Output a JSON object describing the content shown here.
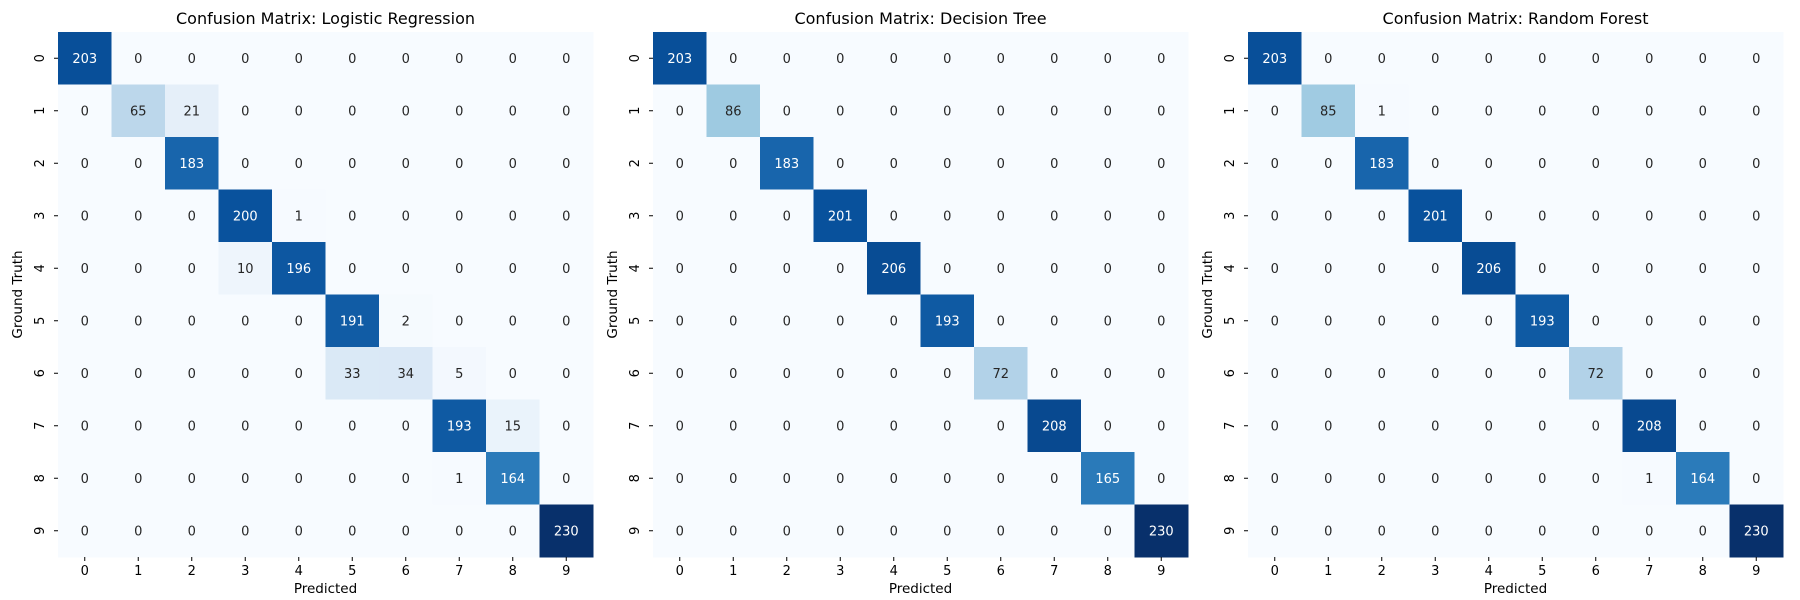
{
  "chart_data": [
    {
      "type": "heatmap",
      "title": "Confusion Matrix: Logistic Regression",
      "xlabel": "Predicted",
      "ylabel": "Ground Truth",
      "x_categories": [
        "0",
        "1",
        "2",
        "3",
        "4",
        "5",
        "6",
        "7",
        "8",
        "9"
      ],
      "y_categories": [
        "0",
        "1",
        "2",
        "3",
        "4",
        "5",
        "6",
        "7",
        "8",
        "9"
      ],
      "colormap": "Blues",
      "vmax": 230,
      "values": [
        [
          203,
          0,
          0,
          0,
          0,
          0,
          0,
          0,
          0,
          0
        ],
        [
          0,
          65,
          21,
          0,
          0,
          0,
          0,
          0,
          0,
          0
        ],
        [
          0,
          0,
          183,
          0,
          0,
          0,
          0,
          0,
          0,
          0
        ],
        [
          0,
          0,
          0,
          200,
          1,
          0,
          0,
          0,
          0,
          0
        ],
        [
          0,
          0,
          0,
          10,
          196,
          0,
          0,
          0,
          0,
          0
        ],
        [
          0,
          0,
          0,
          0,
          0,
          191,
          2,
          0,
          0,
          0
        ],
        [
          0,
          0,
          0,
          0,
          0,
          33,
          34,
          5,
          0,
          0
        ],
        [
          0,
          0,
          0,
          0,
          0,
          0,
          0,
          193,
          15,
          0
        ],
        [
          0,
          0,
          0,
          0,
          0,
          0,
          0,
          1,
          164,
          0
        ],
        [
          0,
          0,
          0,
          0,
          0,
          0,
          0,
          0,
          0,
          230
        ]
      ]
    },
    {
      "type": "heatmap",
      "title": "Confusion Matrix: Decision Tree",
      "xlabel": "Predicted",
      "ylabel": "Ground Truth",
      "x_categories": [
        "0",
        "1",
        "2",
        "3",
        "4",
        "5",
        "6",
        "7",
        "8",
        "9"
      ],
      "y_categories": [
        "0",
        "1",
        "2",
        "3",
        "4",
        "5",
        "6",
        "7",
        "8",
        "9"
      ],
      "colormap": "Blues",
      "vmax": 230,
      "values": [
        [
          203,
          0,
          0,
          0,
          0,
          0,
          0,
          0,
          0,
          0
        ],
        [
          0,
          86,
          0,
          0,
          0,
          0,
          0,
          0,
          0,
          0
        ],
        [
          0,
          0,
          183,
          0,
          0,
          0,
          0,
          0,
          0,
          0
        ],
        [
          0,
          0,
          0,
          201,
          0,
          0,
          0,
          0,
          0,
          0
        ],
        [
          0,
          0,
          0,
          0,
          206,
          0,
          0,
          0,
          0,
          0
        ],
        [
          0,
          0,
          0,
          0,
          0,
          193,
          0,
          0,
          0,
          0
        ],
        [
          0,
          0,
          0,
          0,
          0,
          0,
          72,
          0,
          0,
          0
        ],
        [
          0,
          0,
          0,
          0,
          0,
          0,
          0,
          208,
          0,
          0
        ],
        [
          0,
          0,
          0,
          0,
          0,
          0,
          0,
          0,
          165,
          0
        ],
        [
          0,
          0,
          0,
          0,
          0,
          0,
          0,
          0,
          0,
          230
        ]
      ]
    },
    {
      "type": "heatmap",
      "title": "Confusion Matrix: Random Forest",
      "xlabel": "Predicted",
      "ylabel": "Ground Truth",
      "x_categories": [
        "0",
        "1",
        "2",
        "3",
        "4",
        "5",
        "6",
        "7",
        "8",
        "9"
      ],
      "y_categories": [
        "0",
        "1",
        "2",
        "3",
        "4",
        "5",
        "6",
        "7",
        "8",
        "9"
      ],
      "colormap": "Blues",
      "vmax": 230,
      "values": [
        [
          203,
          0,
          0,
          0,
          0,
          0,
          0,
          0,
          0,
          0
        ],
        [
          0,
          85,
          1,
          0,
          0,
          0,
          0,
          0,
          0,
          0
        ],
        [
          0,
          0,
          183,
          0,
          0,
          0,
          0,
          0,
          0,
          0
        ],
        [
          0,
          0,
          0,
          201,
          0,
          0,
          0,
          0,
          0,
          0
        ],
        [
          0,
          0,
          0,
          0,
          206,
          0,
          0,
          0,
          0,
          0
        ],
        [
          0,
          0,
          0,
          0,
          0,
          193,
          0,
          0,
          0,
          0
        ],
        [
          0,
          0,
          0,
          0,
          0,
          0,
          72,
          0,
          0,
          0
        ],
        [
          0,
          0,
          0,
          0,
          0,
          0,
          0,
          208,
          0,
          0
        ],
        [
          0,
          0,
          0,
          0,
          0,
          0,
          0,
          1,
          164,
          0
        ],
        [
          0,
          0,
          0,
          0,
          0,
          0,
          0,
          0,
          0,
          230
        ]
      ]
    }
  ]
}
